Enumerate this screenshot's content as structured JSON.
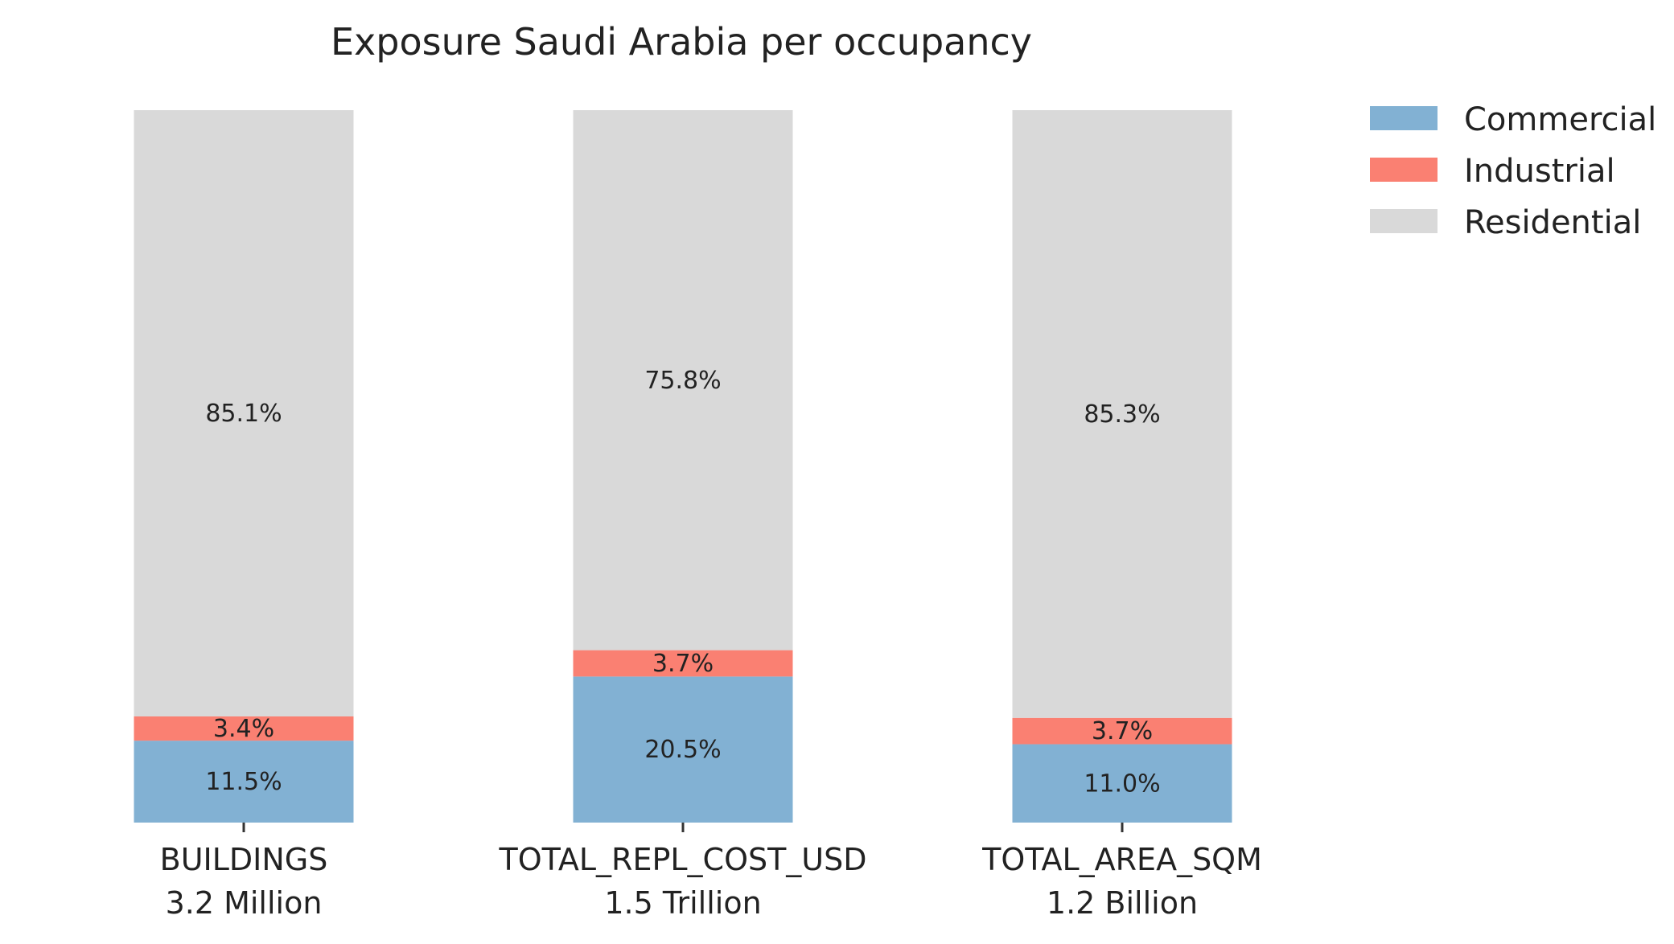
{
  "chart_data": {
    "type": "bar",
    "stacked": true,
    "normalized_percent": true,
    "title": "Exposure Saudi Arabia per occupancy",
    "xlabel": "",
    "ylabel": "",
    "ylim": [
      0,
      100
    ],
    "grid": false,
    "legend_position": "top-right",
    "categories": [
      "BUILDINGS",
      "TOTAL_REPL_COST_USD",
      "TOTAL_AREA_SQM"
    ],
    "category_totals": [
      "3.2 Million",
      "1.5 Trillion",
      "1.2 Billion"
    ],
    "series": [
      {
        "name": "Commercial",
        "color": "#82b1d3",
        "values": [
          11.5,
          20.5,
          11.0
        ],
        "labels": [
          "11.5%",
          "20.5%",
          "11.0%"
        ]
      },
      {
        "name": "Industrial",
        "color": "#fa8072",
        "values": [
          3.4,
          3.7,
          3.7
        ],
        "labels": [
          "3.4%",
          "3.7%",
          "3.7%"
        ]
      },
      {
        "name": "Residential",
        "color": "#d9d9d9",
        "values": [
          85.1,
          75.8,
          85.3
        ],
        "labels": [
          "85.1%",
          "75.8%",
          "85.3%"
        ]
      }
    ]
  }
}
